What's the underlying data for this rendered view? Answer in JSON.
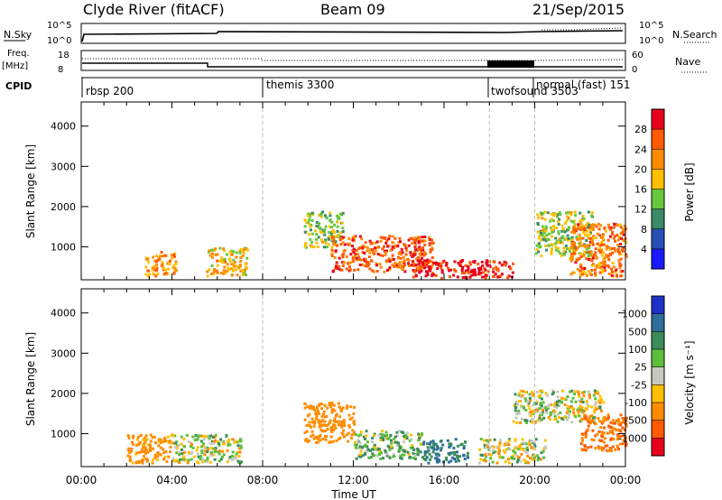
{
  "header": {
    "site": "Clyde River (fitACF)",
    "beam": "Beam 09",
    "date": "21/Sep/2015"
  },
  "top_panels": {
    "nsky_label": "N.Sky",
    "nsky_ticks": [
      "10^5",
      "10^0"
    ],
    "nsearch_label": "N.Search",
    "nsearch_ticks": [
      "10^5",
      "10^0"
    ],
    "freq_label_1": "Freq.",
    "freq_label_2": "[MHz]",
    "freq_ticks": [
      "18",
      "8"
    ],
    "nave_label": "Nave",
    "nave_ticks": [
      "60",
      "0"
    ],
    "cpid_label": "CPID",
    "cpid_segments": [
      {
        "label": "rbsp 200",
        "start_hour": 0
      },
      {
        "label": "themis 3300",
        "start_hour": 8
      },
      {
        "label": "twofsound 3503",
        "start_hour": 18
      },
      {
        "label": "normal (fast) 151",
        "start_hour": 20
      }
    ]
  },
  "panels": {
    "power": {
      "ylabel": "Slant Range [km]",
      "yticks": [
        "4000",
        "3000",
        "2000",
        "1000"
      ],
      "cbar_label": "Power [dB]",
      "cbar_ticks": [
        "28",
        "24",
        "20",
        "16",
        "12",
        "8",
        "4"
      ],
      "cbar_colors": [
        "#e8001c",
        "#ff5a00",
        "#ff8c00",
        "#ffc000",
        "#66c83c",
        "#3a8a6a",
        "#2850b4",
        "#1a1aff"
      ]
    },
    "velocity": {
      "ylabel": "Slant Range [km]",
      "yticks": [
        "4000",
        "3000",
        "2000",
        "1000"
      ],
      "cbar_label": "Velocity [m s⁻¹]",
      "cbar_ticks": [
        "1000",
        "500",
        "100",
        "25",
        "-25",
        "-100",
        "-500",
        "-1000"
      ],
      "cbar_colors": [
        "#1e32c8",
        "#2f6e9a",
        "#3c8c5a",
        "#5cbf3c",
        "#c8c8c0",
        "#ffc000",
        "#ff8c00",
        "#ff5a00",
        "#e8001c"
      ]
    }
  },
  "xaxis": {
    "ticks": [
      "00:00",
      "04:00",
      "08:00",
      "12:00",
      "16:00",
      "20:00",
      "00:00"
    ],
    "label": "Time UT"
  },
  "chart_data": [
    {
      "type": "heatmap",
      "title": "Clyde River (fitACF) Beam 09 21/Sep/2015",
      "xlabel": "Time UT",
      "ylabel": "Slant Range [km]",
      "xlim": [
        0,
        24
      ],
      "ylim": [
        180,
        4600
      ],
      "colorbar": "Power [dB]",
      "cbar_range": [
        0,
        30
      ],
      "regions": [
        {
          "t0": 2.8,
          "t1": 4.2,
          "r0": 300,
          "r1": 900,
          "value": 20
        },
        {
          "t0": 5.5,
          "t1": 7.3,
          "r0": 300,
          "r1": 1000,
          "value": 18
        },
        {
          "t0": 9.8,
          "t1": 11.5,
          "r0": 1000,
          "r1": 1900,
          "value": 14
        },
        {
          "t0": 11.0,
          "t1": 15.5,
          "r0": 400,
          "r1": 1300,
          "value": 24
        },
        {
          "t0": 14.5,
          "t1": 19.0,
          "r0": 250,
          "r1": 700,
          "value": 28
        },
        {
          "t0": 20.0,
          "t1": 22.5,
          "r0": 800,
          "r1": 1900,
          "value": 14
        },
        {
          "t0": 21.5,
          "t1": 24.0,
          "r0": 300,
          "r1": 1600,
          "value": 22
        }
      ]
    },
    {
      "type": "heatmap",
      "xlabel": "Time UT",
      "ylabel": "Slant Range [km]",
      "xlim": [
        0,
        24
      ],
      "ylim": [
        180,
        4600
      ],
      "colorbar": "Velocity [m s⁻¹]",
      "cbar_range": [
        -1000,
        1000
      ],
      "regions": [
        {
          "t0": 2.0,
          "t1": 4.0,
          "r0": 300,
          "r1": 1000,
          "value": -200
        },
        {
          "t0": 4.0,
          "t1": 7.0,
          "r0": 300,
          "r1": 1000,
          "value": 0
        },
        {
          "t0": 9.8,
          "t1": 12.0,
          "r0": 800,
          "r1": 1800,
          "value": -300
        },
        {
          "t0": 12.0,
          "t1": 15.0,
          "r0": 400,
          "r1": 1100,
          "value": 80
        },
        {
          "t0": 15.0,
          "t1": 17.0,
          "r0": 300,
          "r1": 900,
          "value": 500
        },
        {
          "t0": 17.5,
          "t1": 20.5,
          "r0": 300,
          "r1": 900,
          "value": 0
        },
        {
          "t0": 19.0,
          "t1": 23.0,
          "r0": 1300,
          "r1": 2100,
          "value": 0
        },
        {
          "t0": 22.0,
          "t1": 24.0,
          "r0": 600,
          "r1": 1500,
          "value": -500
        }
      ]
    }
  ]
}
